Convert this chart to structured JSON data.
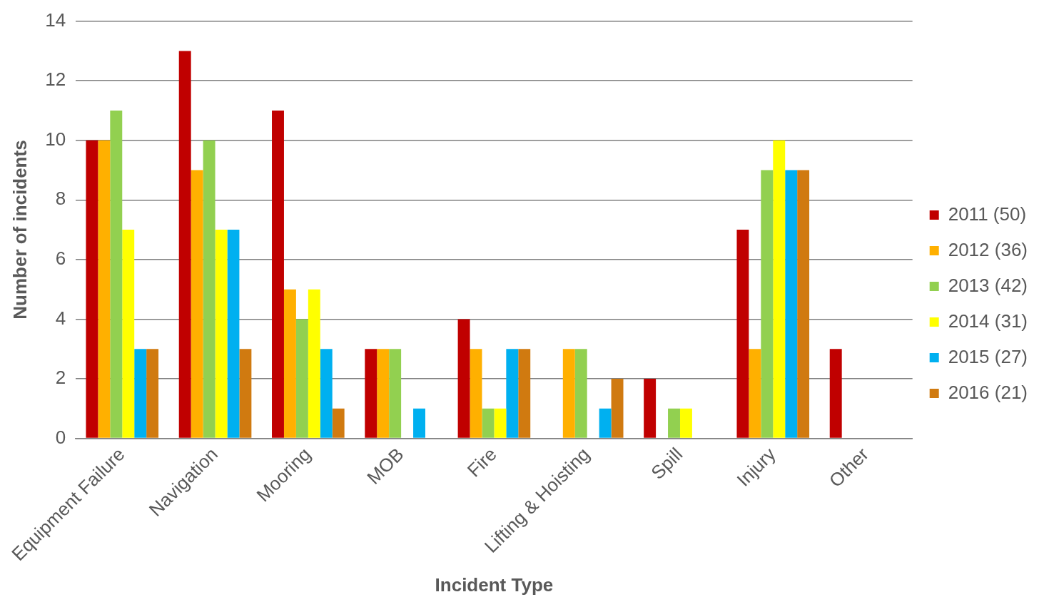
{
  "chart_data": {
    "type": "bar",
    "xlabel": "Incident Type",
    "ylabel": "Number of incidents",
    "categories": [
      "Equipment Failure",
      "Navigation",
      "Mooring",
      "MOB",
      "Fire",
      "Lifting & Hoisting",
      "Spill",
      "Injury",
      "Other"
    ],
    "series": [
      {
        "name": "2011 (50)",
        "color": "#c00000",
        "values": [
          10,
          13,
          11,
          3,
          4,
          0,
          2,
          7,
          3
        ]
      },
      {
        "name": "2012 (36)",
        "color": "#ffb000",
        "values": [
          10,
          9,
          5,
          3,
          3,
          3,
          0,
          3,
          0
        ]
      },
      {
        "name": "2013 (42)",
        "color": "#92d050",
        "values": [
          11,
          10,
          4,
          3,
          1,
          3,
          1,
          9,
          0
        ]
      },
      {
        "name": "2014 (31)",
        "color": "#ffff00",
        "values": [
          7,
          7,
          5,
          0,
          1,
          0,
          1,
          10,
          0
        ]
      },
      {
        "name": "2015 (27)",
        "color": "#00b0f0",
        "values": [
          3,
          7,
          3,
          1,
          3,
          1,
          0,
          9,
          0
        ]
      },
      {
        "name": "2016 (21)",
        "color": "#d07a10",
        "values": [
          3,
          3,
          1,
          0,
          3,
          2,
          0,
          9,
          0
        ]
      }
    ],
    "ylim": [
      0,
      14
    ],
    "yticks": [
      0,
      2,
      4,
      6,
      8,
      10,
      12,
      14
    ],
    "grid": "y",
    "legend": "right"
  }
}
